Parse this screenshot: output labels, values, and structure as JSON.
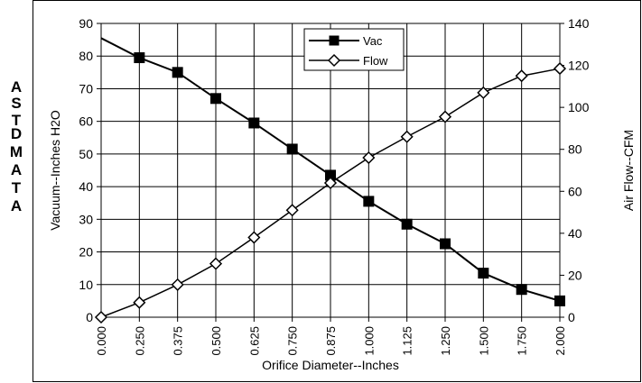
{
  "side_text": [
    "A",
    "S",
    "T",
    "D",
    "M",
    "A",
    "T",
    "A"
  ],
  "chart_data": {
    "type": "line",
    "categories": [
      "0.000",
      "0.250",
      "0.375",
      "0.500",
      "0.625",
      "0.750",
      "0.875",
      "1.000",
      "1.125",
      "1.250",
      "1.500",
      "1.750",
      "2.000"
    ],
    "series": [
      {
        "name": "Vac",
        "axis": "left",
        "marker": "filled-square",
        "values": [
          85.5,
          79.5,
          75,
          67,
          59.5,
          51.5,
          43.5,
          35.5,
          28.5,
          22.5,
          13.5,
          8.5,
          5
        ],
        "marker_from_index": 1
      },
      {
        "name": "Flow",
        "axis": "right",
        "marker": "open-diamond",
        "values": [
          0,
          7,
          15.5,
          25.5,
          38,
          51,
          64,
          76,
          86,
          95.5,
          107,
          115,
          118.5
        ]
      }
    ],
    "xlabel": "Orifice Diameter--Inches",
    "ylabel_left": "Vacuum--Inches H2O",
    "ylabel_right": "Air Flow--CFM",
    "ylim_left": [
      0,
      90
    ],
    "yticks_left": [
      0,
      10,
      20,
      30,
      40,
      50,
      60,
      70,
      80,
      90
    ],
    "ylim_right": [
      0,
      140
    ],
    "yticks_right": [
      0,
      20,
      40,
      60,
      80,
      100,
      120,
      140
    ],
    "grid": true,
    "legend": "top-center",
    "colors": {
      "line": "#000000",
      "grid": "#000000"
    }
  }
}
